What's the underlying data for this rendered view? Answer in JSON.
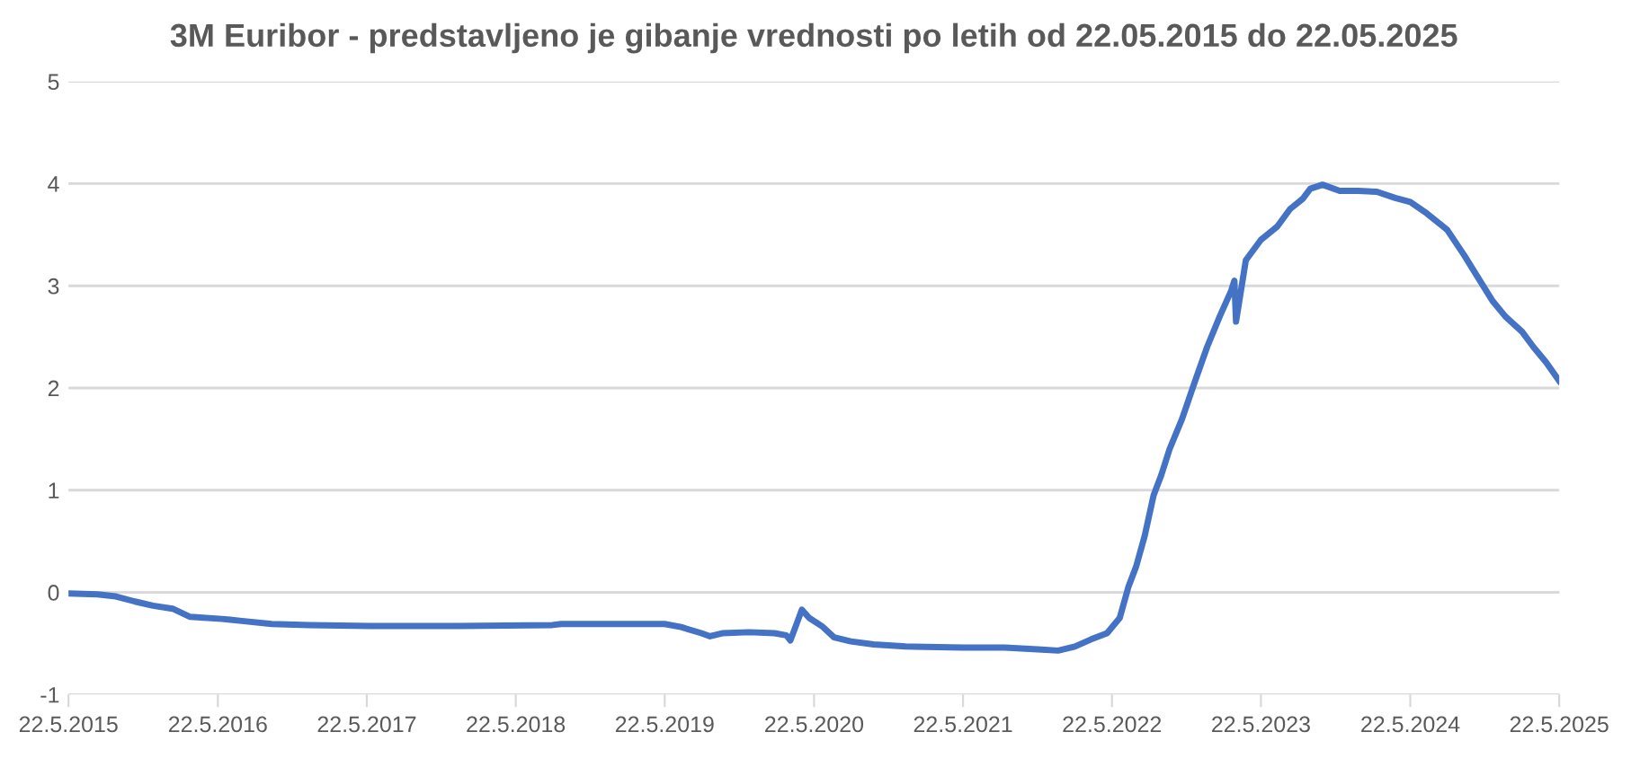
{
  "chart_data": {
    "type": "line",
    "title": "3M Euribor - predstavljeno je gibanje vrednosti po letih od 22.05.2015 do 22.05.2025",
    "series": [
      {
        "color": "#4472c4",
        "x": [
          "2015-05-22",
          "2015-08-01",
          "2015-09-15",
          "2015-11-01",
          "2015-12-15",
          "2016-02-01",
          "2016-03-15",
          "2016-06-01",
          "2016-07-20",
          "2016-10-01",
          "2017-01-01",
          "2017-06-01",
          "2018-01-01",
          "2018-08-20",
          "2018-09-10",
          "2019-03-01",
          "2019-05-22",
          "2019-07-01",
          "2019-08-20",
          "2019-09-10",
          "2019-10-10",
          "2019-12-15",
          "2020-02-15",
          "2020-03-15",
          "2020-03-25",
          "2020-04-10",
          "2020-04-22",
          "2020-05-10",
          "2020-06-10",
          "2020-07-10",
          "2020-08-20",
          "2020-10-15",
          "2021-01-01",
          "2021-05-22",
          "2021-09-01",
          "2021-12-01",
          "2022-01-10",
          "2022-02-20",
          "2022-04-01",
          "2022-05-10",
          "2022-06-10",
          "2022-07-01",
          "2022-07-20",
          "2022-08-10",
          "2022-09-01",
          "2022-09-20",
          "2022-10-10",
          "2022-11-10",
          "2022-12-10",
          "2023-01-10",
          "2023-02-10",
          "2023-03-10",
          "2023-03-18",
          "2023-03-22",
          "2023-04-15",
          "2023-05-22",
          "2023-07-01",
          "2023-08-01",
          "2023-09-01",
          "2023-09-20",
          "2023-10-20",
          "2023-12-01",
          "2024-01-15",
          "2024-03-01",
          "2024-04-15",
          "2024-05-22",
          "2024-07-01",
          "2024-08-20",
          "2024-10-01",
          "2024-11-01",
          "2024-12-10",
          "2025-01-10",
          "2025-02-20",
          "2025-03-20",
          "2025-04-20",
          "2025-05-22"
        ],
        "values": [
          -0.01,
          -0.02,
          -0.04,
          -0.09,
          -0.13,
          -0.16,
          -0.24,
          -0.26,
          -0.28,
          -0.31,
          -0.32,
          -0.33,
          -0.33,
          -0.32,
          -0.31,
          -0.31,
          -0.31,
          -0.34,
          -0.4,
          -0.43,
          -0.4,
          -0.39,
          -0.4,
          -0.42,
          -0.47,
          -0.3,
          -0.17,
          -0.25,
          -0.33,
          -0.44,
          -0.48,
          -0.51,
          -0.53,
          -0.54,
          -0.54,
          -0.56,
          -0.57,
          -0.53,
          -0.46,
          -0.4,
          -0.25,
          0.05,
          0.25,
          0.55,
          0.95,
          1.15,
          1.4,
          1.7,
          2.05,
          2.4,
          2.7,
          2.95,
          3.05,
          2.65,
          3.25,
          3.45,
          3.58,
          3.75,
          3.85,
          3.95,
          3.99,
          3.93,
          3.93,
          3.92,
          3.86,
          3.82,
          3.71,
          3.55,
          3.3,
          3.1,
          2.85,
          2.7,
          2.55,
          2.4,
          2.25,
          2.07
        ]
      }
    ],
    "ylim": [
      -1,
      5
    ],
    "yticks": [
      -1,
      0,
      1,
      2,
      3,
      4,
      5
    ],
    "xlim": [
      "2015-05-22",
      "2025-05-22"
    ],
    "xticks": [
      {
        "value": "2015-05-22",
        "label": "22.5.2015"
      },
      {
        "value": "2016-05-22",
        "label": "22.5.2016"
      },
      {
        "value": "2017-05-22",
        "label": "22.5.2017"
      },
      {
        "value": "2018-05-22",
        "label": "22.5.2018"
      },
      {
        "value": "2019-05-22",
        "label": "22.5.2019"
      },
      {
        "value": "2020-05-22",
        "label": "22.5.2020"
      },
      {
        "value": "2021-05-22",
        "label": "22.5.2021"
      },
      {
        "value": "2022-05-22",
        "label": "22.5.2022"
      },
      {
        "value": "2023-05-22",
        "label": "22.5.2023"
      },
      {
        "value": "2024-05-22",
        "label": "22.5.2024"
      },
      {
        "value": "2025-05-22",
        "label": "22.5.2025"
      }
    ],
    "grid": "y",
    "legend": false,
    "marker": "none",
    "line_style": "solid"
  }
}
